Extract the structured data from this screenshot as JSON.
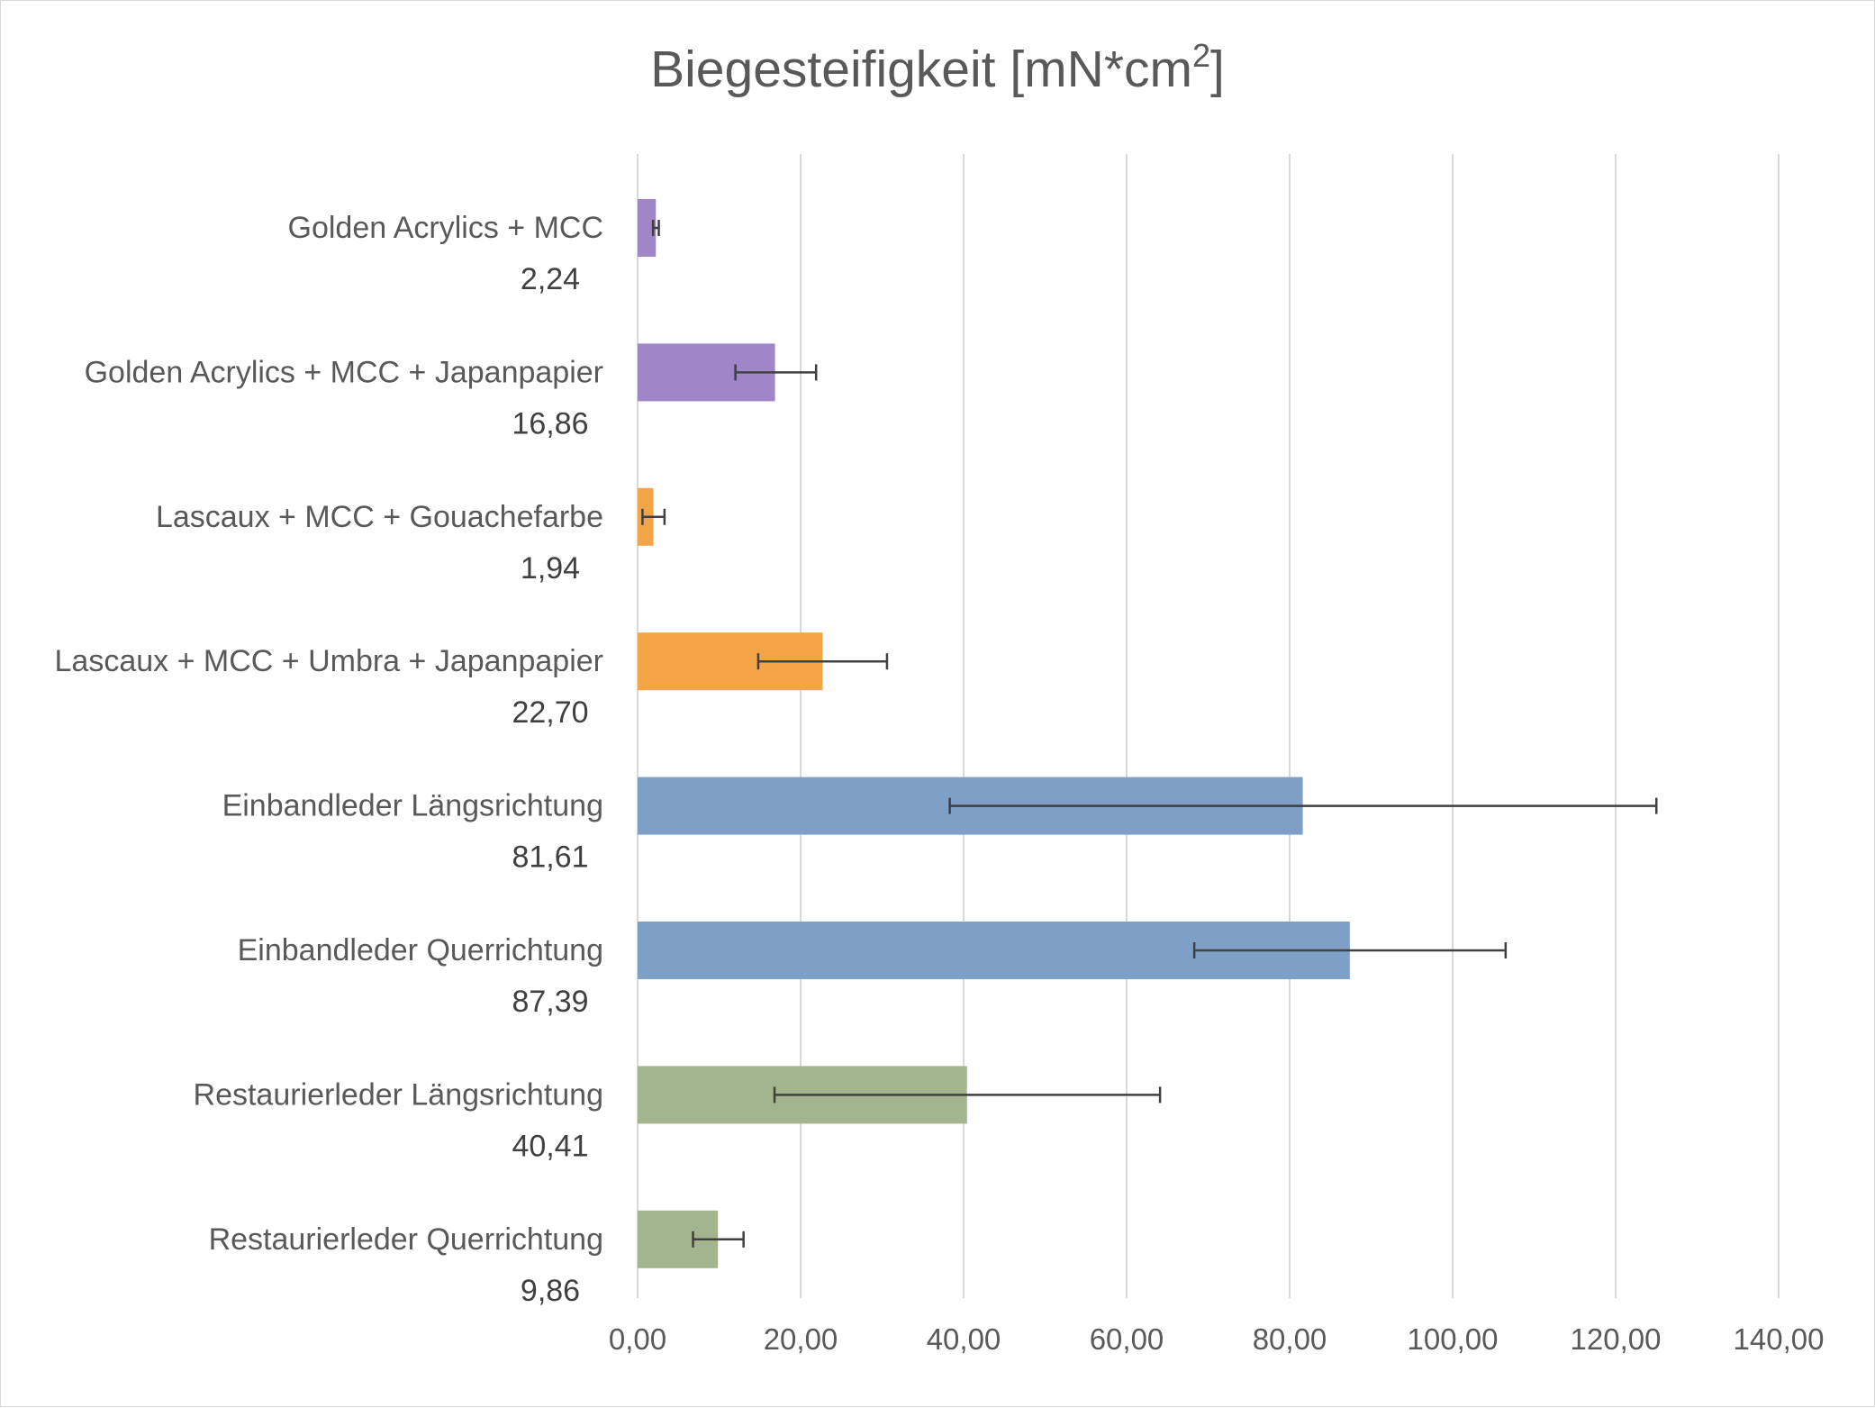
{
  "chart_data": {
    "type": "bar",
    "orientation": "horizontal",
    "title": "Biegesteifigkeit [mN*cm",
    "title_superscript": "2",
    "title_suffix": "]",
    "xlabel": "",
    "ylabel": "",
    "xlim": [
      0,
      140
    ],
    "ticks": [
      "0,00",
      "20,00",
      "40,00",
      "60,00",
      "80,00",
      "100,00",
      "120,00",
      "140,00"
    ],
    "tick_values": [
      0,
      20,
      40,
      60,
      80,
      100,
      120,
      140
    ],
    "grid": "vertical",
    "legend": "none",
    "categories": [
      "Golden Acrylics + MCC",
      "Golden Acrylics + MCC + Japanpapier",
      "Lascaux + MCC + Gouachefarbe",
      "Lascaux + MCC + Umbra + Japanpapier",
      "Einbandleder Längsrichtung",
      "Einbandleder Querrichtung",
      "Restaurierleder Längsrichtung",
      "Restaurierleder Querrichtung"
    ],
    "values": [
      2.24,
      16.86,
      1.94,
      22.7,
      81.61,
      87.39,
      40.41,
      9.86
    ],
    "value_labels": [
      "2,24",
      "16,86",
      "1,94",
      "22,70",
      "81,61",
      "87,39",
      "40,41",
      "9,86"
    ],
    "error_low": [
      1.9,
      12.0,
      0.6,
      14.8,
      38.3,
      68.3,
      16.8,
      6.8
    ],
    "error_high": [
      2.6,
      21.9,
      3.3,
      30.6,
      125.0,
      106.5,
      64.1,
      13.0
    ],
    "colors": [
      "#9e86c8",
      "#9e86c8",
      "#f2a446",
      "#f2a446",
      "#7fa0c6",
      "#7fa0c6",
      "#a3b58e",
      "#a3b58e"
    ]
  },
  "style": {
    "gridline_color": "#d9d9d9",
    "errorbar_color": "#404040"
  }
}
